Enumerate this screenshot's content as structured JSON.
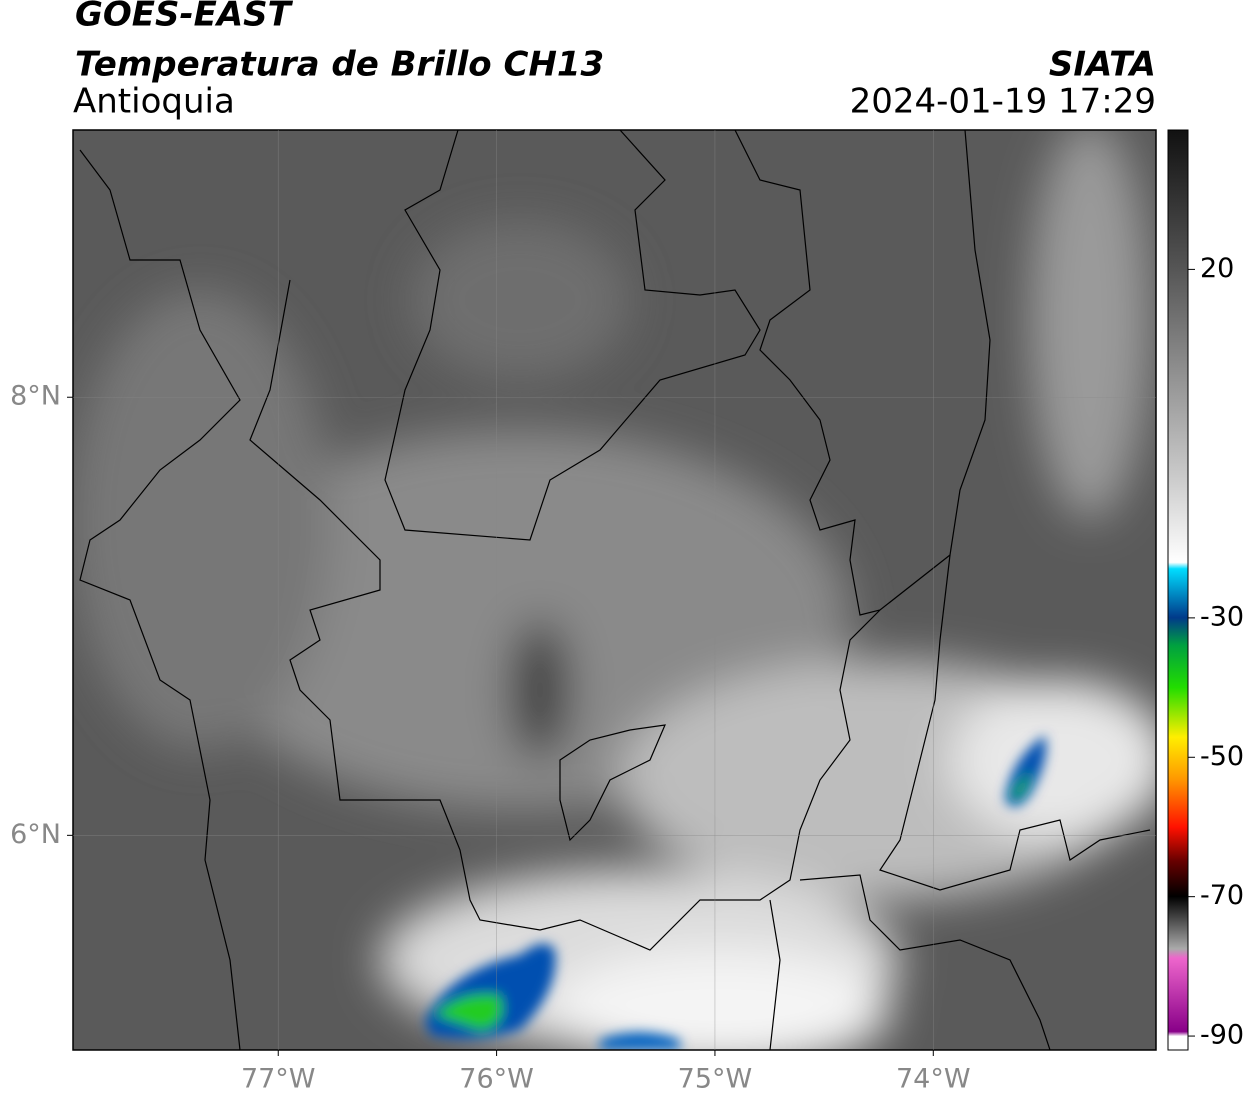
{
  "header": {
    "title": "GOES-EAST",
    "subtitle": "Temperatura de Brillo CH13",
    "region": "Antioquia",
    "source": "SIATA",
    "timestamp": "2024-01-19 17:29"
  },
  "map": {
    "xlim": [
      -77.94,
      -72.98
    ],
    "ylim": [
      5.02,
      9.22
    ],
    "xticks": [
      {
        "value": -77,
        "label": "77°W"
      },
      {
        "value": -76,
        "label": "76°W"
      },
      {
        "value": -75,
        "label": "75°W"
      },
      {
        "value": -74,
        "label": "74°W"
      }
    ],
    "yticks": [
      {
        "value": 8,
        "label": "8°N"
      },
      {
        "value": 6,
        "label": "6°N"
      }
    ],
    "grid": true
  },
  "colorbar": {
    "lim": [
      -92,
      40
    ],
    "ticks": [
      20,
      -30,
      -50,
      -70,
      -90
    ]
  }
}
